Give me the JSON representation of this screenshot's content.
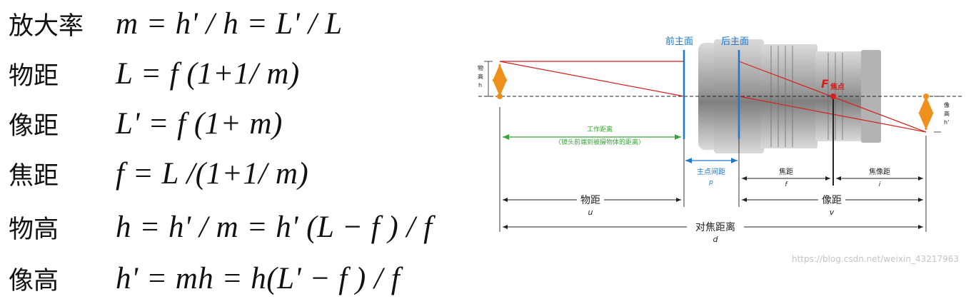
{
  "formulas": [
    {
      "label": "放大率",
      "equation": "m = h' / h = L' / L"
    },
    {
      "label": "物距",
      "equation": "L = f (1+1/ m)"
    },
    {
      "label": "像距",
      "equation": "L' = f (1+ m)"
    },
    {
      "label": "焦距",
      "equation": "f = L /(1+1/ m)"
    },
    {
      "label": "物高",
      "equation": "h = h' / m = h' (L − f ) / f"
    },
    {
      "label": "像高",
      "equation": "h' = mh = h(L' − f ) / f"
    }
  ],
  "diagram": {
    "front_principal_plane": "前主面",
    "rear_principal_plane": "后主面",
    "object_height_label": "物\n高\nh",
    "image_height_label": "像\n高\nh'",
    "focus_letter": "F",
    "focus_label": "焦点",
    "working_distance": "工作距离",
    "working_distance_note": "（镜头前端到被摄物体的距离）",
    "principal_gap": "主点间距",
    "principal_gap_symbol": "p",
    "focal_length": "焦距",
    "focal_length_symbol": "f",
    "image_focal_distance": "焦像距",
    "image_focal_symbol": "i",
    "object_distance": "物距",
    "object_distance_symbol": "u",
    "image_distance": "像距",
    "image_distance_symbol": "v",
    "focus_distance": "对焦距离",
    "focus_distance_symbol": "d",
    "watermark": "https://blog.csdn.net/weixin_43217963"
  },
  "colors": {
    "blue": "#1f78c8",
    "orange": "#f0901c",
    "red": "#d81f1f",
    "green": "#3aa33a",
    "black": "#222222",
    "lens": "#8a8a8a"
  }
}
